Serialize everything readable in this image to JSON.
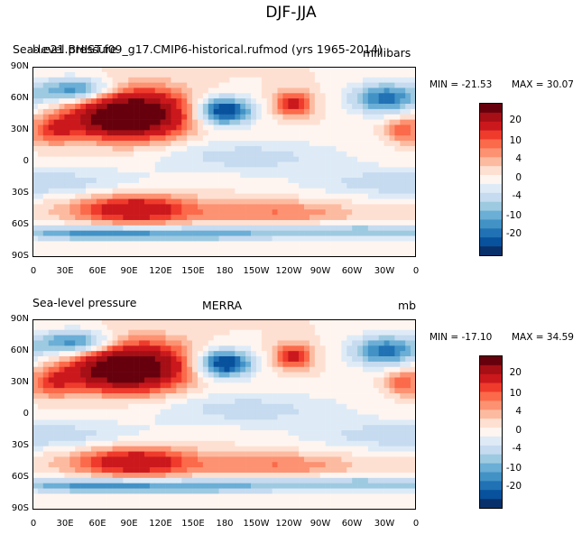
{
  "title": "DJF-JJA",
  "panels": [
    {
      "left_title": "Sea-level pressure",
      "right_title": "millibars",
      "overlay_title": "b.e21.BHIST.f09_g17.CMIP6-historical.rufmod (yrs 1965-2014)",
      "min_label": "MIN = -21.53",
      "max_label": "MAX =  30.07"
    },
    {
      "left_title": "Sea-level pressure",
      "center_title": "MERRA",
      "right_title": "mb",
      "min_label": "MIN = -17.10",
      "max_label": "MAX =  34.59"
    }
  ],
  "lat_ticks": [
    "90N",
    "60N",
    "30N",
    "0",
    "30S",
    "60S",
    "90S"
  ],
  "lon_ticks": [
    "0",
    "30E",
    "60E",
    "90E",
    "120E",
    "150E",
    "180",
    "150W",
    "120W",
    "90W",
    "60W",
    "30W",
    "0"
  ],
  "colorbar": {
    "labels": [
      "20",
      "10",
      "4",
      "0",
      "-4",
      "-10",
      "-20"
    ],
    "colors": [
      "#67000d",
      "#a50f15",
      "#cb181d",
      "#ef3b2c",
      "#fb6a4a",
      "#fc9272",
      "#fcbba1",
      "#fee0d2",
      "#fff5f0",
      "#deebf7",
      "#c6dbef",
      "#9ecae1",
      "#6baed6",
      "#4292c6",
      "#2171b5",
      "#08519c",
      "#08306b"
    ]
  },
  "chart_data": [
    {
      "type": "heatmap",
      "title": "Sea-level pressure",
      "subtitle": "b.e21.BHIST.f09_g17.CMIP6-historical.rufmod (yrs 1965-2014)",
      "units": "millibars",
      "season_difference": "DJF-JJA",
      "x_range": [
        0,
        360
      ],
      "y_range": [
        -90,
        90
      ],
      "min": -21.53,
      "max": 30.07,
      "contour_levels": [
        -20,
        -10,
        -4,
        0,
        4,
        10,
        20
      ]
    },
    {
      "type": "heatmap",
      "title": "Sea-level pressure",
      "subtitle": "MERRA",
      "units": "mb",
      "season_difference": "DJF-JJA",
      "x_range": [
        0,
        360
      ],
      "y_range": [
        -90,
        90
      ],
      "min": -17.1,
      "max": 34.59,
      "contour_levels": [
        -20,
        -10,
        -4,
        0,
        4,
        10,
        20
      ]
    }
  ]
}
